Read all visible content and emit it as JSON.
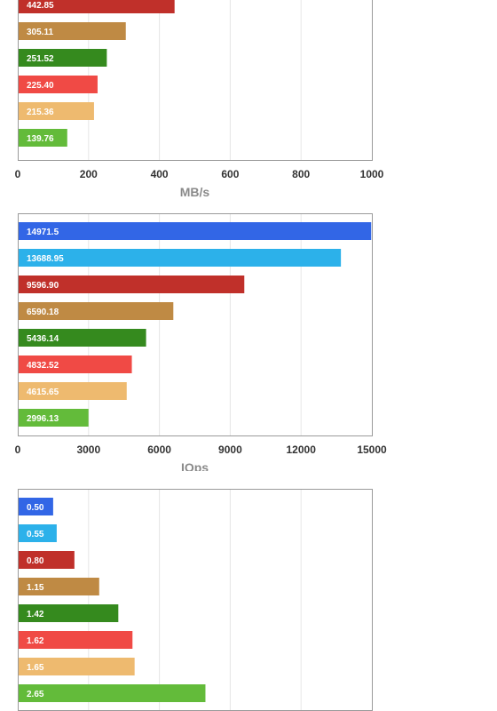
{
  "chart_data": [
    {
      "type": "bar",
      "orientation": "horizontal",
      "title": "",
      "xlabel": "MB/s",
      "ylabel": "",
      "xlim": [
        0,
        1000
      ],
      "xticks": [
        "0",
        "200",
        "400",
        "600",
        "800",
        "1000"
      ],
      "grid": true,
      "values": [
        442.85,
        305.11,
        251.52,
        225.4,
        215.36,
        139.76
      ],
      "labels": [
        "442.85",
        "305.11",
        "251.52",
        "225.40",
        "215.36",
        "139.76"
      ],
      "colors": [
        "#c0302a",
        "#bf8a44",
        "#358a1e",
        "#f04a45",
        "#eeba6f",
        "#63bb3a"
      ]
    },
    {
      "type": "bar",
      "orientation": "horizontal",
      "title": "",
      "xlabel": "IOps",
      "ylabel": "",
      "xlim": [
        0,
        15000
      ],
      "xticks": [
        "0",
        "3000",
        "6000",
        "9000",
        "12000",
        "15000"
      ],
      "grid": true,
      "values": [
        14971.5,
        13688.95,
        9596.9,
        6590.18,
        5436.14,
        4832.52,
        4615.65,
        2996.13
      ],
      "labels": [
        "14971.5",
        "13688.95",
        "9596.90",
        "6590.18",
        "5436.14",
        "4832.52",
        "4615.65",
        "2996.13"
      ],
      "colors": [
        "#3266e6",
        "#2cb1ea",
        "#c0302a",
        "#bf8a44",
        "#358a1e",
        "#f04a45",
        "#eeba6f",
        "#63bb3a"
      ]
    },
    {
      "type": "bar",
      "orientation": "horizontal",
      "title": "",
      "xlabel": "",
      "ylabel": "",
      "xlim": [
        0,
        5
      ],
      "xticks": [],
      "grid": true,
      "values": [
        0.5,
        0.55,
        0.8,
        1.15,
        1.42,
        1.62,
        1.65,
        2.65
      ],
      "labels": [
        "0.50",
        "0.55",
        "0.80",
        "1.15",
        "1.42",
        "1.62",
        "1.65",
        "2.65"
      ],
      "colors": [
        "#3266e6",
        "#2cb1ea",
        "#c0302a",
        "#bf8a44",
        "#358a1e",
        "#f04a45",
        "#eeba6f",
        "#63bb3a"
      ]
    }
  ]
}
